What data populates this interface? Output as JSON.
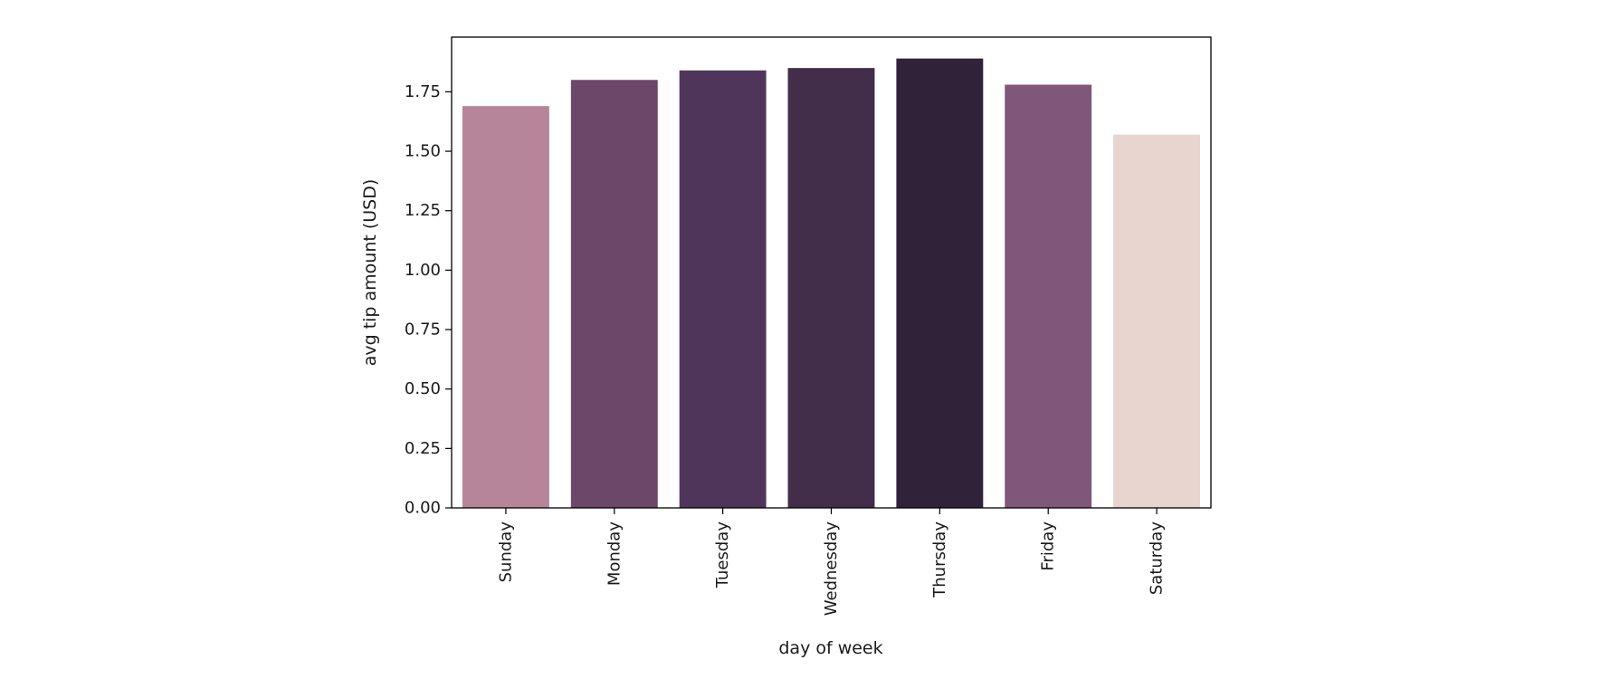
{
  "chart_data": {
    "type": "bar",
    "title": "",
    "xlabel": "day of week",
    "ylabel": "avg tip amount (USD)",
    "categories": [
      "Sunday",
      "Monday",
      "Tuesday",
      "Wednesday",
      "Thursday",
      "Friday",
      "Saturday"
    ],
    "values": [
      1.69,
      1.8,
      1.84,
      1.85,
      1.89,
      1.78,
      1.57
    ],
    "colors": [
      "#b68599",
      "#6c4769",
      "#50355a",
      "#422d4b",
      "#2f2239",
      "#80577b",
      "#e8d5d0"
    ],
    "ylim": [
      0,
      1.98
    ],
    "yticks": [
      0.0,
      0.25,
      0.5,
      0.75,
      1.0,
      1.25,
      1.5,
      1.75
    ],
    "ytick_labels": [
      "0.00",
      "0.25",
      "0.50",
      "0.75",
      "1.00",
      "1.25",
      "1.50",
      "1.75"
    ],
    "grid": false,
    "legend": "none"
  }
}
